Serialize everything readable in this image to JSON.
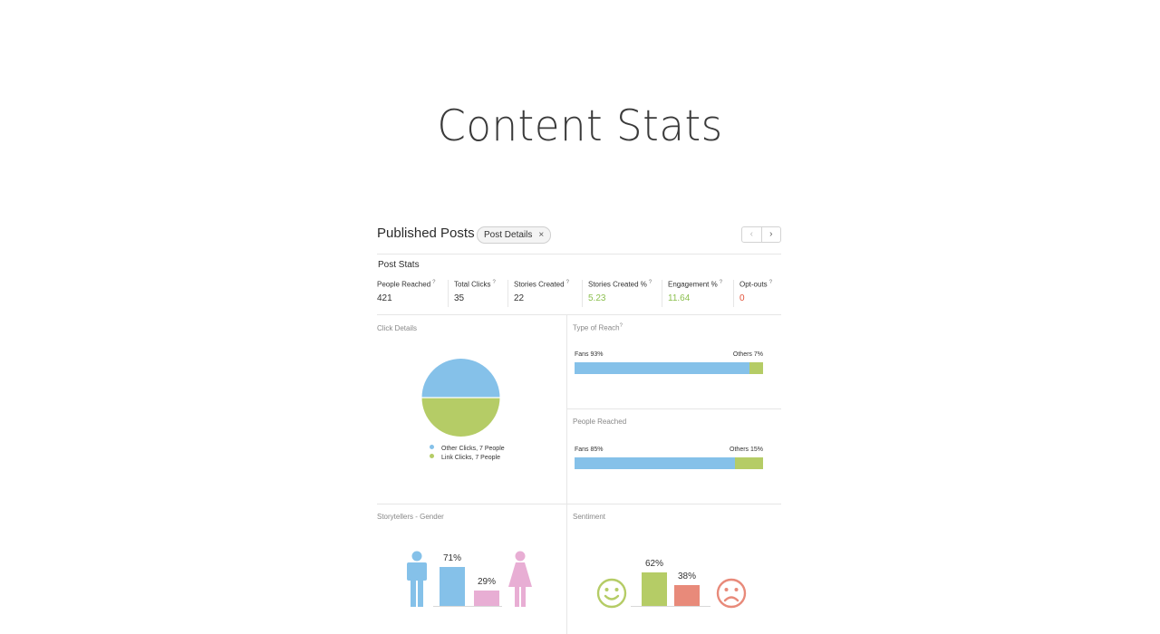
{
  "page": {
    "title": "Content Stats"
  },
  "header": {
    "title": "Published Posts",
    "tag": {
      "label": "Post Details",
      "close": "×"
    },
    "pager": {
      "prev": "‹",
      "next": "›"
    }
  },
  "post_stats": {
    "title": "Post Stats",
    "items": [
      {
        "label": "People Reached",
        "hint": "?",
        "value": "421",
        "color": "#333333"
      },
      {
        "label": "Total Clicks",
        "hint": "?",
        "value": "35",
        "color": "#333333"
      },
      {
        "label": "Stories Created",
        "hint": "?",
        "value": "22",
        "color": "#333333"
      },
      {
        "label": "Stories Created %",
        "hint": "?",
        "value": "5.23",
        "color": "#8bbf4e"
      },
      {
        "label": "Engagement %",
        "hint": "?",
        "value": "11.64",
        "color": "#8bbf4e"
      },
      {
        "label": "Opt-outs",
        "hint": "?",
        "value": "0",
        "color": "#e2533a"
      }
    ]
  },
  "click_details": {
    "title": "Click Details",
    "legend": [
      {
        "label": "Other Clicks, 7 People",
        "color": "#85c1e9"
      },
      {
        "label": "Link Clicks, 7 People",
        "color": "#b5cc66"
      }
    ]
  },
  "type_of_reach": {
    "title": "Type of Reach",
    "hint": "?",
    "left_label": "Fans 93%",
    "right_label": "Others 7%"
  },
  "people_reached": {
    "title": "People Reached",
    "left_label": "Fans 85%",
    "right_label": "Others 15%"
  },
  "gender": {
    "title": "Storytellers - Gender",
    "male_pct": "71%",
    "female_pct": "29%"
  },
  "sentiment": {
    "title": "Sentiment",
    "positive_pct": "62%",
    "negative_pct": "38%"
  },
  "colors": {
    "blue": "#85c1e9",
    "green": "#b5cc66",
    "pink": "#e8aed4",
    "red": "#e88a7a"
  },
  "chart_data": [
    {
      "type": "pie",
      "title": "Click Details",
      "labels": [
        "Other Clicks",
        "Link Clicks"
      ],
      "values": [
        7,
        7
      ],
      "colors": [
        "#85c1e9",
        "#b5cc66"
      ]
    },
    {
      "type": "bar",
      "title": "Type of Reach",
      "stacked": true,
      "categories": [
        "Fans",
        "Others"
      ],
      "values": [
        93,
        7
      ],
      "colors": [
        "#85c1e9",
        "#b5cc66"
      ]
    },
    {
      "type": "bar",
      "title": "People Reached",
      "stacked": true,
      "categories": [
        "Fans",
        "Others"
      ],
      "values": [
        85,
        15
      ],
      "colors": [
        "#85c1e9",
        "#b5cc66"
      ]
    },
    {
      "type": "bar",
      "title": "Storytellers - Gender",
      "categories": [
        "Male",
        "Female"
      ],
      "values": [
        71,
        29
      ],
      "colors": [
        "#85c1e9",
        "#e8aed4"
      ]
    },
    {
      "type": "bar",
      "title": "Sentiment",
      "categories": [
        "Positive",
        "Negative"
      ],
      "values": [
        62,
        38
      ],
      "colors": [
        "#b5cc66",
        "#e88a7a"
      ]
    }
  ]
}
